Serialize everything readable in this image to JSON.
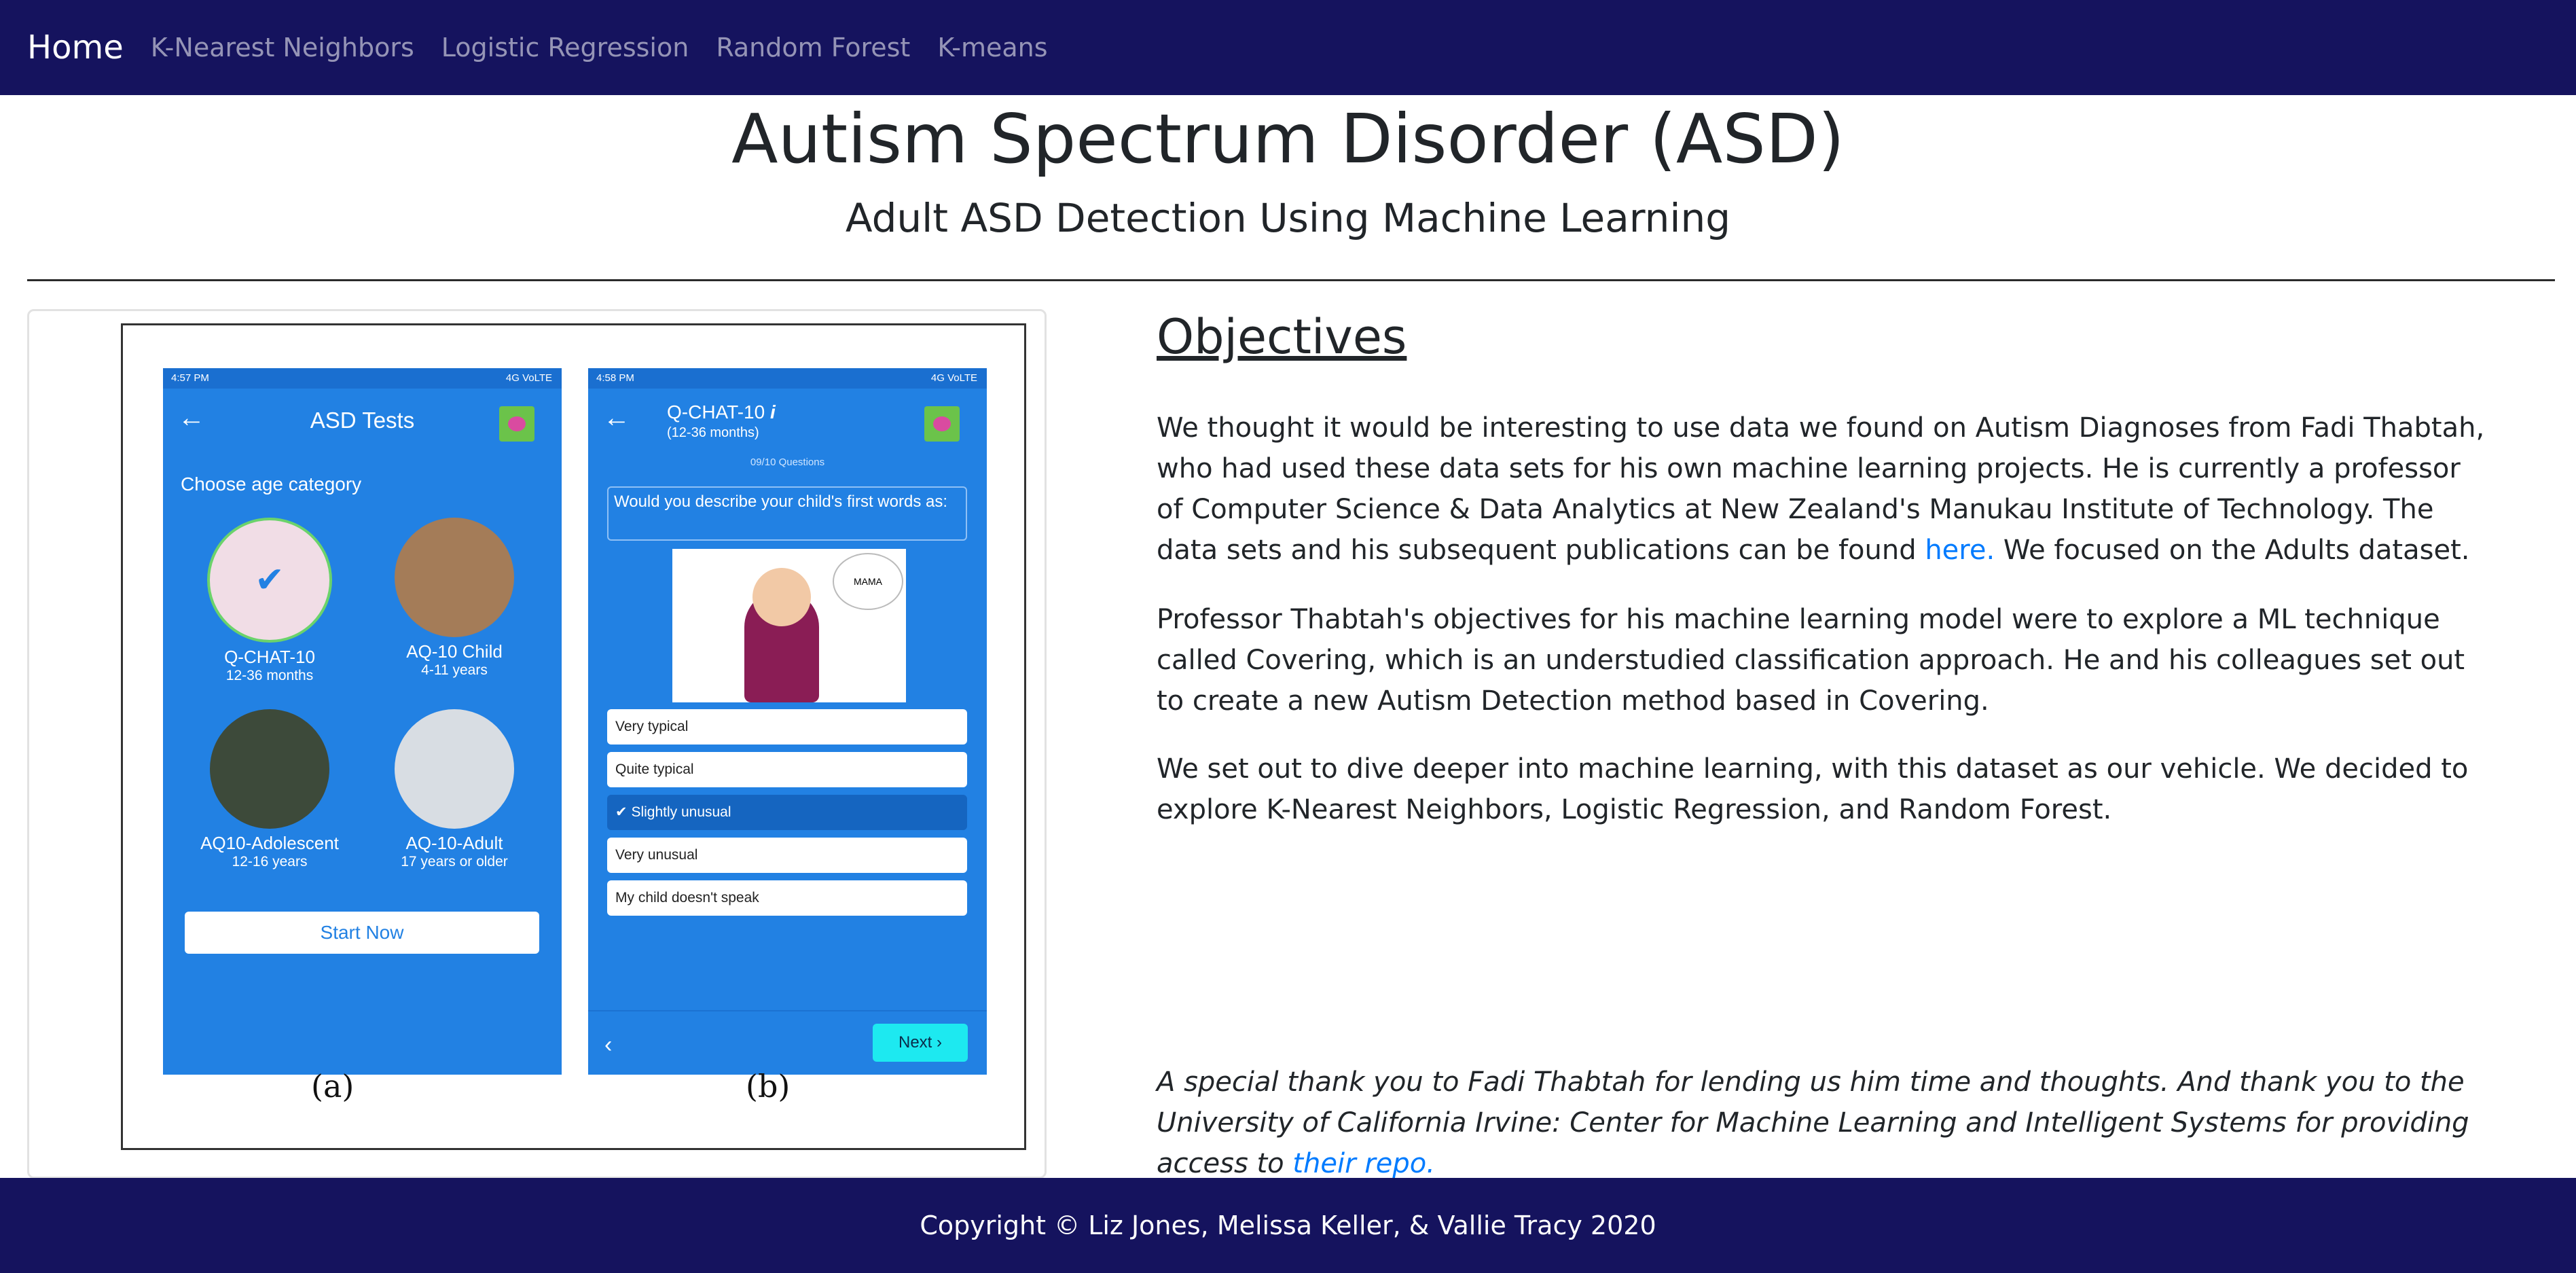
{
  "navbar": {
    "brand": "Home",
    "links": [
      "K-Nearest Neighbors",
      "Logistic Regression",
      "Random Forest",
      "K-means"
    ]
  },
  "header": {
    "title": "Autism Spectrum Disorder (ASD)",
    "subtitle": "Adult ASD Detection Using Machine Learning"
  },
  "figure": {
    "phone_a": {
      "status_time": "4:57 PM",
      "status_net": "4G VoLTE",
      "title": "ASD Tests",
      "prompt": "Choose age category",
      "categories": [
        {
          "name": "Q-CHAT-10",
          "age": "12-36 months"
        },
        {
          "name": "AQ-10 Child",
          "age": "4-11 years"
        },
        {
          "name": "AQ10-Adolescent",
          "age": "12-16 years"
        },
        {
          "name": "AQ-10-Adult",
          "age": "17 years or older"
        }
      ],
      "button": "Start Now"
    },
    "phone_b": {
      "status_time": "4:58 PM",
      "status_net": "4G VoLTE",
      "title": "Q-CHAT-10",
      "subtitle": "(12-36 months)",
      "count": "09/10 Questions",
      "question": "Would you describe your child's first words as:",
      "bubble": "MAMA",
      "options": [
        "Very typical",
        "Quite typical",
        "Slightly unusual",
        "Very unusual",
        "My child doesn't speak"
      ],
      "next": "Next"
    },
    "label_a": "(a)",
    "label_b": "(b)"
  },
  "objectives": {
    "heading": "Objectives",
    "p1_text": "We thought it would be interesting to use data we found on Autism Diagnoses from Fadi Thabtah, who had used these data sets for his own machine learning projects. He is currently a professor of Computer Science & Data Analytics at New Zealand's Manukau Institute of Technology. The data sets and his subsequent publications can be found ",
    "p1_link": "here.",
    "p1_tail": " We focused on the Adults dataset.",
    "p2": "Professor Thabtah's objectives for his machine learning model were to explore a ML technique called Covering, which is an understudied classification approach. He and his colleagues set out to create a new Autism Detection method based in Covering.",
    "p3": "We set out to dive deeper into machine learning, with this dataset as our vehicle. We decided to explore K-Nearest Neighbors, Logistic Regression, and Random Forest.",
    "thanks_text": "A special thank you to Fadi Thabtah for lending us him time and thoughts. And thank you to the University of California Irvine: Center for Machine Learning and Intelligent Systems for providing access to ",
    "thanks_link": "their repo."
  },
  "footer": {
    "copyright": "Copyright © Liz Jones, Melissa Keller, & Vallie Tracy 2020"
  }
}
